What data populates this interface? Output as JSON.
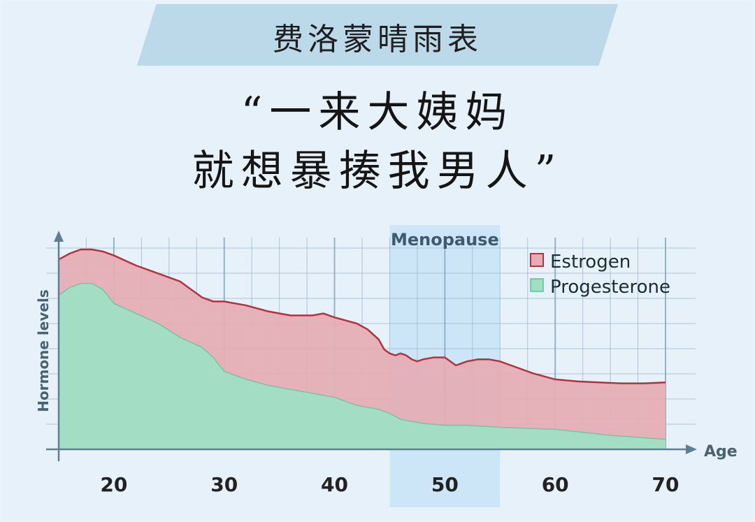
{
  "header": {
    "title": "费洛蒙晴雨表",
    "quote_line1": "“一来大姨妈",
    "quote_line2": "就想暴揍我男人”"
  },
  "colors": {
    "estrogen_fill": "#e5adb3",
    "estrogen_line": "#b5323d",
    "progesterone_fill": "#9fe0c4",
    "grid": "#9fb9cd",
    "menopause_band": "#c7e4f7",
    "axis": "#5f7f93"
  },
  "chart_data": {
    "type": "area",
    "xlabel": "Age",
    "ylabel": "Hormone levels",
    "xlim": [
      15,
      70
    ],
    "ylim": [
      0,
      100
    ],
    "xticks": [
      20,
      30,
      40,
      50,
      60,
      70
    ],
    "grid": true,
    "legend_position": "top-right",
    "band": {
      "label": "Menopause",
      "x_start": 45,
      "x_end": 55
    },
    "series": [
      {
        "name": "Estrogen",
        "x": [
          15,
          16,
          17,
          18,
          19,
          20,
          22,
          24,
          26,
          27,
          28,
          29,
          30,
          32,
          34,
          36,
          38,
          39,
          40,
          42,
          43,
          44,
          44.5,
          45,
          45.5,
          46,
          46.5,
          47,
          47.5,
          48,
          49,
          50,
          51,
          52,
          53,
          54,
          55,
          56,
          58,
          60,
          62,
          64,
          66,
          68,
          70
        ],
        "values": [
          95,
          98,
          100,
          100,
          99,
          97,
          92,
          88,
          84,
          80,
          76,
          74,
          74,
          72,
          69,
          67,
          67,
          68,
          66,
          63,
          60,
          55,
          50,
          48,
          47,
          48,
          47,
          45,
          44,
          45,
          46,
          46,
          42,
          44,
          45,
          45,
          44,
          42,
          38,
          35,
          34,
          33.5,
          33,
          33,
          33.5
        ]
      },
      {
        "name": "Progesterone",
        "x": [
          15,
          16,
          17,
          18,
          19,
          20,
          22,
          24,
          26,
          28,
          29,
          30,
          32,
          34,
          36,
          38,
          40,
          42,
          44,
          45,
          46,
          48,
          50,
          52,
          55,
          60,
          65,
          70
        ],
        "values": [
          77,
          81,
          83,
          83,
          80,
          73,
          68,
          63,
          56,
          51,
          46,
          39,
          35,
          32,
          30,
          28,
          26,
          22,
          20,
          18,
          15,
          13,
          12,
          12,
          11,
          10,
          7,
          5
        ]
      }
    ]
  }
}
